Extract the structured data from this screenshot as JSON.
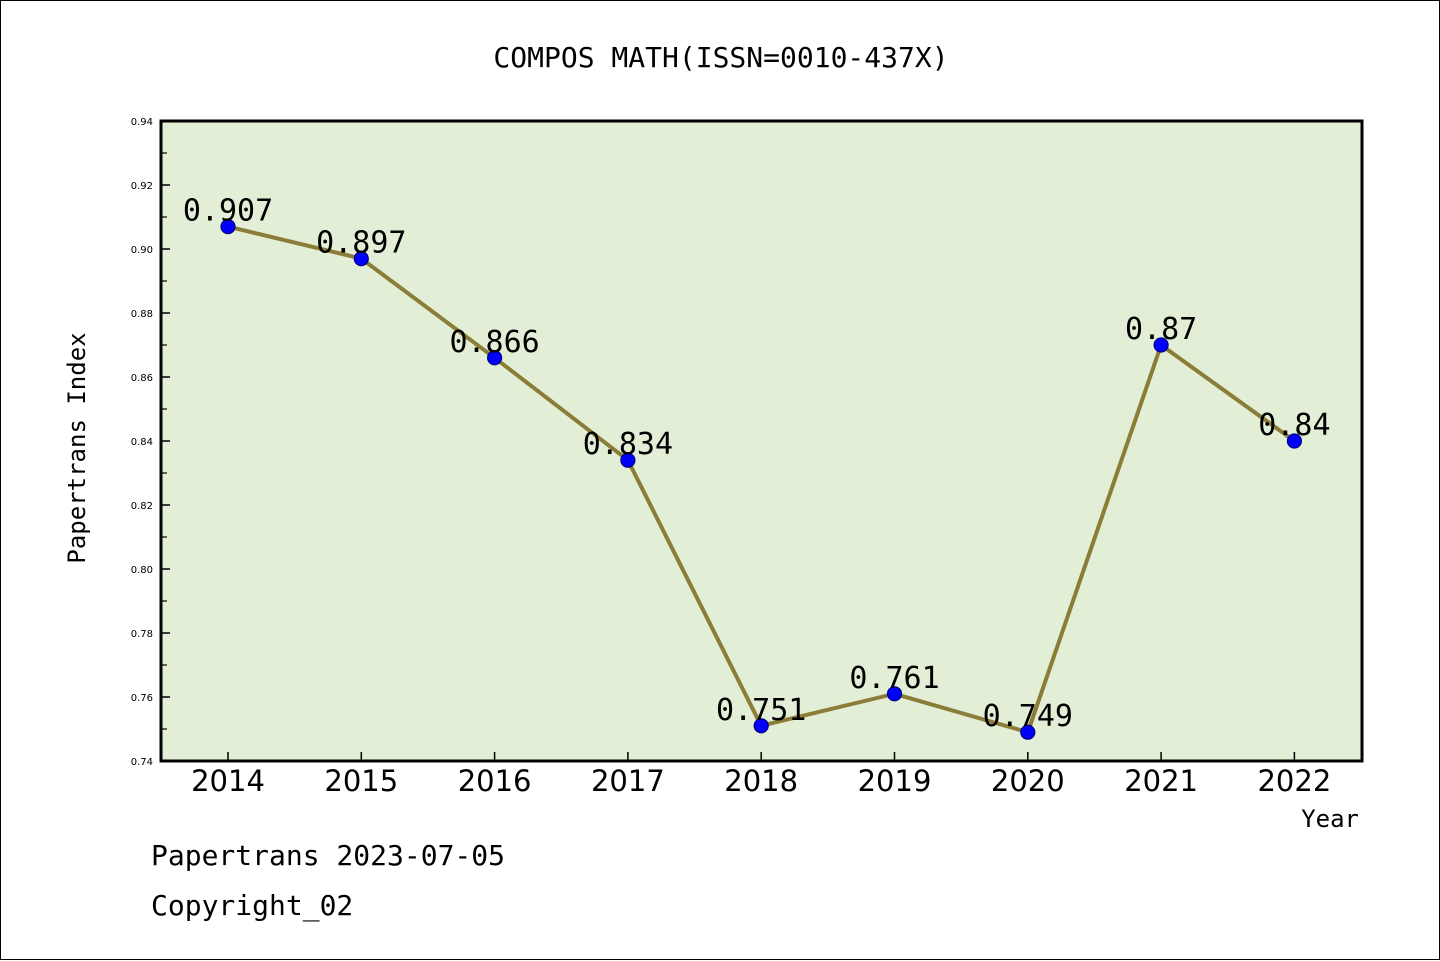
{
  "chart_data": {
    "type": "line",
    "title": "COMPOS MATH(ISSN=0010-437X)",
    "xlabel": "Year",
    "ylabel": "Papertrans Index",
    "categories": [
      "2014",
      "2015",
      "2016",
      "2017",
      "2018",
      "2019",
      "2020",
      "2021",
      "2022"
    ],
    "series": [
      {
        "values": [
          0.907,
          0.897,
          0.866,
          0.834,
          0.751,
          0.761,
          0.749,
          0.87,
          0.84
        ],
        "labels": [
          "0.907",
          "0.897",
          "0.866",
          "0.834",
          "0.751",
          "0.761",
          "0.749",
          "0.87",
          "0.84"
        ]
      }
    ],
    "ylim": [
      0.74,
      0.94
    ],
    "yticks": [
      "0.74",
      "0.76",
      "0.78",
      "0.80",
      "0.82",
      "0.84",
      "0.86",
      "0.88",
      "0.90",
      "0.92",
      "0.94"
    ],
    "grid": false,
    "colors": {
      "plot_background": "#e2efd6",
      "line": "#8b7d38",
      "marker": "#0000ff",
      "marker_edge": "#000080",
      "axis": "#000000"
    }
  },
  "footer": {
    "source": "Papertrans 2023-07-05",
    "copyright": "Copyright_02"
  }
}
